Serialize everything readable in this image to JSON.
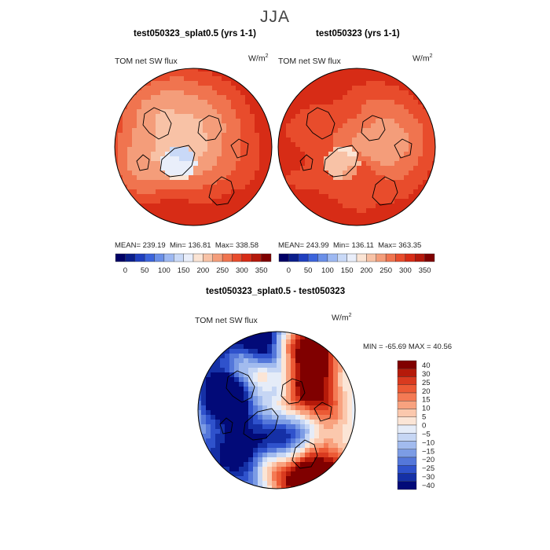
{
  "figure": {
    "season": "JJA",
    "panels": [
      {
        "title": "test050323_splat0.5 (yrs 1-1)",
        "field_label": "TOM net SW flux",
        "units": "W/m",
        "units_exponent": "2",
        "stats": {
          "mean_label": "MEAN=",
          "mean": "239.19",
          "min_label": "Min=",
          "min": "136.81",
          "max_label": "Max=",
          "max": "338.58"
        }
      },
      {
        "title": "test050323 (yrs 1-1)",
        "field_label": "TOM net SW flux",
        "units": "W/m",
        "units_exponent": "2",
        "stats": {
          "mean_label": "MEAN=",
          "mean": "243.99",
          "min_label": "Min=",
          "min": "136.11",
          "max_label": "Max=",
          "max": "363.35"
        }
      }
    ],
    "diff_panel": {
      "title": "test050323_splat0.5 - test050323",
      "field_label": "TOM net SW flux",
      "units": "W/m",
      "units_exponent": "2",
      "stats": {
        "min_label": "MIN =",
        "min": "-65.69",
        "max_label": "MAX =",
        "max": "40.56"
      }
    }
  },
  "chart_data": [
    {
      "type": "heatmap",
      "projection": "north polar stereographic",
      "title": "test050323_splat0.5 (yrs 1-1)",
      "variable": "TOM net SW flux",
      "units": "W/m2",
      "mean": 239.19,
      "min": 136.81,
      "max": 338.58,
      "colorbar": {
        "orientation": "horizontal",
        "ticks": [
          "0",
          "50",
          "100",
          "150",
          "200",
          "250",
          "300",
          "350"
        ],
        "colors": [
          "#000066",
          "#0a1e8c",
          "#1f3fbf",
          "#3c64dc",
          "#6a8fe8",
          "#9db8f2",
          "#c9d9f7",
          "#e9eefa",
          "#fbe4d4",
          "#f8c2a6",
          "#f49d7a",
          "#f0744f",
          "#e84c2c",
          "#d72c16",
          "#b5180b",
          "#7f0000"
        ]
      }
    },
    {
      "type": "heatmap",
      "projection": "north polar stereographic",
      "title": "test050323 (yrs 1-1)",
      "variable": "TOM net SW flux",
      "units": "W/m2",
      "mean": 243.99,
      "min": 136.11,
      "max": 363.35,
      "colorbar": {
        "orientation": "horizontal",
        "ticks": [
          "0",
          "50",
          "100",
          "150",
          "200",
          "250",
          "300",
          "350"
        ],
        "colors": [
          "#000066",
          "#0a1e8c",
          "#1f3fbf",
          "#3c64dc",
          "#6a8fe8",
          "#9db8f2",
          "#c9d9f7",
          "#e9eefa",
          "#fbe4d4",
          "#f8c2a6",
          "#f49d7a",
          "#f0744f",
          "#e84c2c",
          "#d72c16",
          "#b5180b",
          "#7f0000"
        ]
      }
    },
    {
      "type": "heatmap",
      "projection": "north polar stereographic",
      "title": "test050323_splat0.5 - test050323",
      "variable": "TOM net SW flux",
      "units": "W/m2",
      "min": -65.69,
      "max": 40.56,
      "colorbar": {
        "orientation": "vertical",
        "ticks_top_to_bottom": [
          "40",
          "30",
          "25",
          "20",
          "15",
          "10",
          "5",
          "0",
          "−5",
          "−10",
          "−15",
          "−20",
          "−25",
          "−30",
          "−40"
        ],
        "colors_top_to_bottom": [
          "#800000",
          "#b51a0a",
          "#d93a1f",
          "#ec5a35",
          "#f47a54",
          "#f8a27f",
          "#fbc8ad",
          "#fbe5d6",
          "#e5ecf8",
          "#c6d6f4",
          "#a2bbee",
          "#7c9ce5",
          "#5477da",
          "#2f52cc",
          "#1530a6",
          "#020a78"
        ]
      }
    }
  ]
}
